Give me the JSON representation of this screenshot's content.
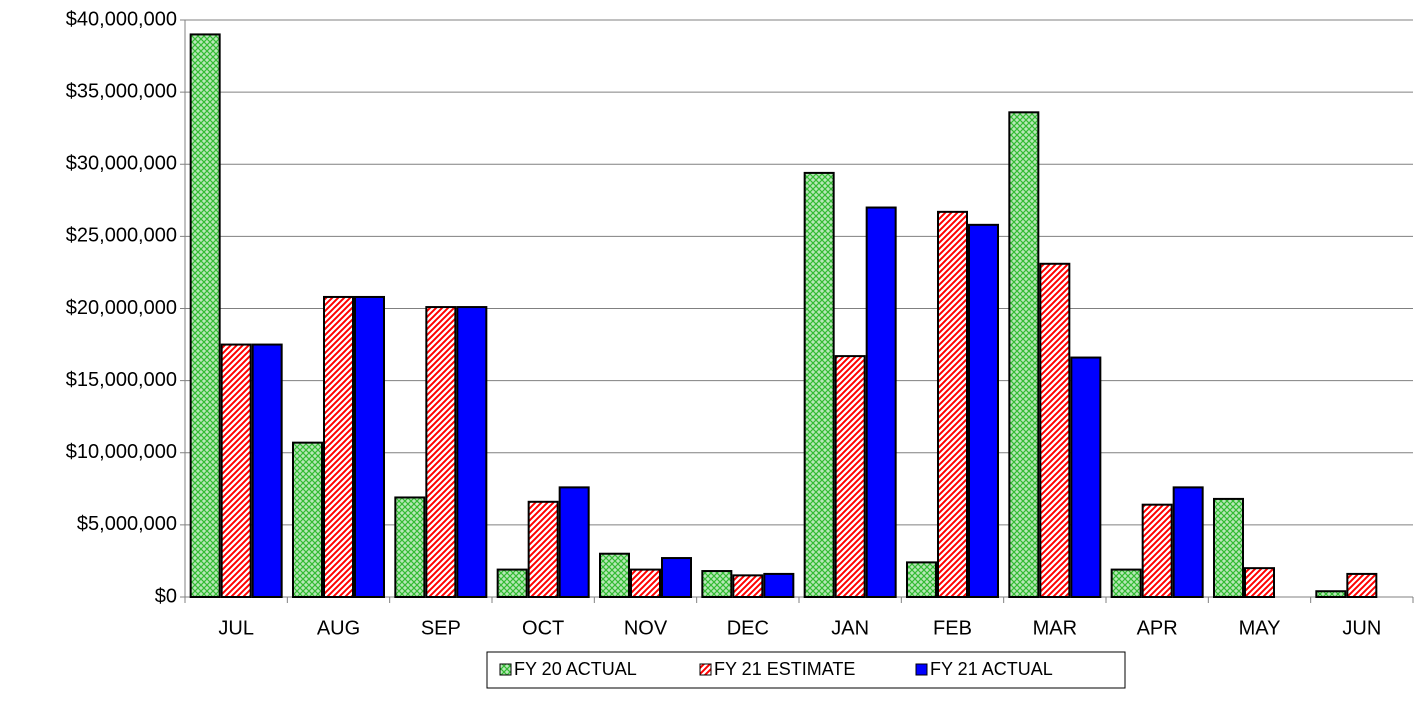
{
  "chart_data": {
    "type": "bar",
    "categories": [
      "JUL",
      "AUG",
      "SEP",
      "OCT",
      "NOV",
      "DEC",
      "JAN",
      "FEB",
      "MAR",
      "APR",
      "MAY",
      "JUN"
    ],
    "series": [
      {
        "name": "FY 20 ACTUAL",
        "color": "#33bb33",
        "pattern": "crosshatch",
        "values": [
          39000000,
          10700000,
          6900000,
          1900000,
          3000000,
          1800000,
          29400000,
          2400000,
          33600000,
          1900000,
          6800000,
          400000
        ]
      },
      {
        "name": "FY 21 ESTIMATE",
        "color": "#ff0000",
        "pattern": "diagonal",
        "values": [
          17500000,
          20800000,
          20100000,
          6600000,
          1900000,
          1500000,
          16700000,
          26700000,
          23100000,
          6400000,
          2000000,
          1600000
        ]
      },
      {
        "name": "FY 21 ACTUAL",
        "color": "#0000ff",
        "pattern": "solid",
        "values": [
          17500000,
          20800000,
          20100000,
          7600000,
          2700000,
          1600000,
          27000000,
          25800000,
          16600000,
          7600000,
          null,
          null
        ]
      }
    ],
    "ylim": [
      0,
      40000000
    ],
    "yticks": [
      {
        "value": 0,
        "label": "$0"
      },
      {
        "value": 5000000,
        "label": "$5,000,000"
      },
      {
        "value": 10000000,
        "label": "$10,000,000"
      },
      {
        "value": 15000000,
        "label": "$15,000,000"
      },
      {
        "value": 20000000,
        "label": "$20,000,000"
      },
      {
        "value": 25000000,
        "label": "$25,000,000"
      },
      {
        "value": 30000000,
        "label": "$30,000,000"
      },
      {
        "value": 35000000,
        "label": "$35,000,000"
      },
      {
        "value": 40000000,
        "label": "$40,000,000"
      }
    ],
    "grid": true,
    "legend": "bottom"
  }
}
